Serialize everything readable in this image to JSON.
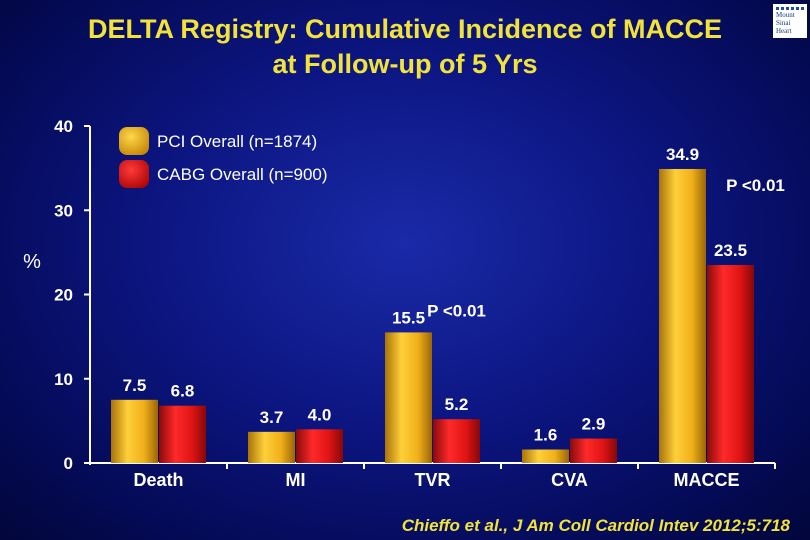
{
  "title_line1": "DELTA Registry:  Cumulative Incidence of MACCE",
  "title_line2": "at Follow-up of 5 Yrs",
  "logo": {
    "line1": "Mount",
    "line2": "Sinai",
    "line3": "Heart"
  },
  "citation": "Chieffo et al., J Am Coll Cardiol Intev 2012;5:718",
  "colors": {
    "pci": "#f0b81a",
    "cabg": "#e01515",
    "label": "#ffffff",
    "accent": "#f2e33a"
  },
  "chart_data": {
    "type": "bar",
    "categories": [
      "Death",
      "MI",
      "TVR",
      "CVA",
      "MACCE"
    ],
    "series": [
      {
        "name": "PCI Overall (n=1874)",
        "values": [
          7.5,
          3.7,
          15.5,
          1.6,
          34.9
        ],
        "labels": [
          "7.5",
          "3.7",
          "15.5",
          "1.6",
          "34.9"
        ]
      },
      {
        "name": "CABG Overall (n=900)",
        "values": [
          6.8,
          4.0,
          5.2,
          2.9,
          23.5
        ],
        "labels": [
          "6.8",
          "4.0",
          "5.2",
          "2.9",
          "23.5"
        ]
      }
    ],
    "ylabel": "%",
    "ylim": [
      0,
      40
    ],
    "yticks": [
      "0",
      "10",
      "20",
      "30",
      "40"
    ],
    "annotations": [
      {
        "category": "TVR",
        "text": "P <0.01"
      },
      {
        "category": "MACCE",
        "text": "P <0.01"
      }
    ],
    "legend_position": "top-left",
    "grid": false
  }
}
